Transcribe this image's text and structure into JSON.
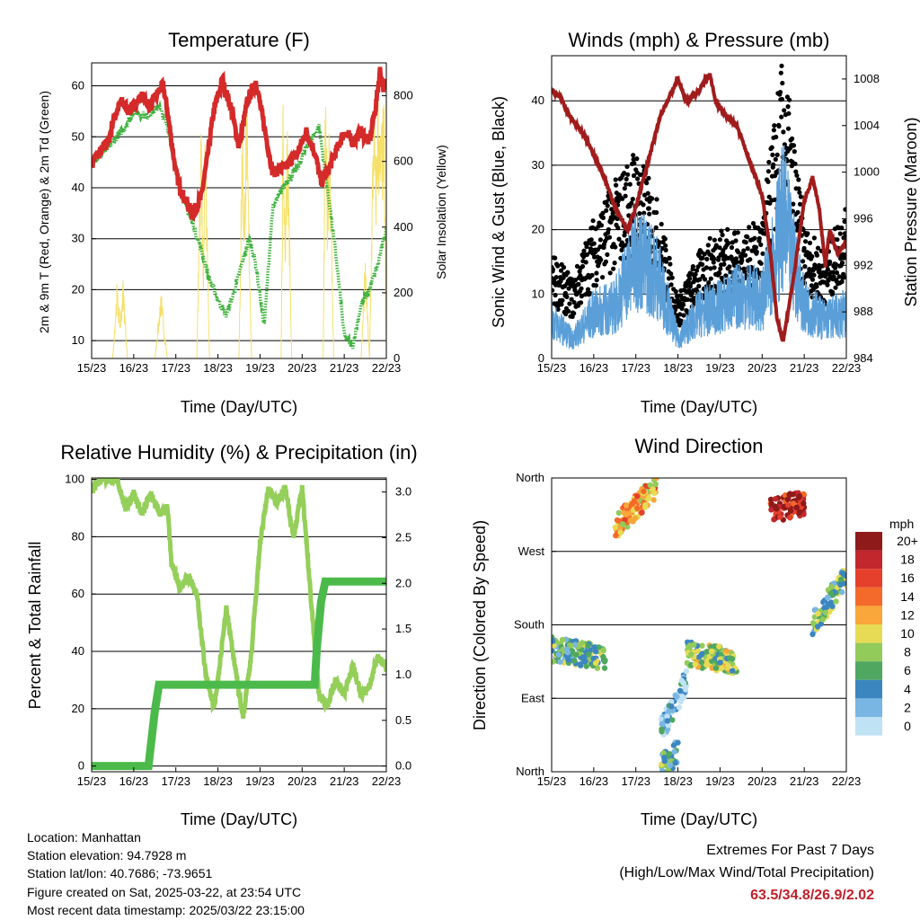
{
  "colors": {
    "temp": "#d42a2a",
    "dew": "#3fb23f",
    "solar": "#f5e06a",
    "wind": "#5b9fd9",
    "gust": "#000000",
    "pressure": "#a01c1c",
    "rh": "#94cf5a",
    "precip": "#4bba4b",
    "extremes": "#c0202a"
  },
  "x_ticks": [
    "15/23",
    "16/23",
    "17/23",
    "18/23",
    "19/23",
    "20/23",
    "21/23",
    "22/23"
  ],
  "info": {
    "location": "Location: Manhattan",
    "elevation": "Station elevation: 94.7928 m",
    "latlon": "Station lat/lon: 40.7686; -73.9651",
    "created": "Figure created on Sat, 2025-03-22, at 23:54 UTC",
    "recent": "Most recent data timestamp: 2025/03/22 23:15:00"
  },
  "extremes": {
    "title": "Extremes For Past 7 Days",
    "subtitle": "(High/Low/Max Wind/Total Precipitation)",
    "values": "63.5/34.8/26.9/2.02"
  },
  "chart_data": [
    {
      "type": "line",
      "title": "Temperature (F)",
      "xlabel": "Time (Day/UTC)",
      "ylabel": "2m & 9m T (Red, Orange) & 2m Td (Green)",
      "ylabel_right": "Solar Insolation (Yellow)",
      "x_range": [
        0,
        7
      ],
      "ylim": [
        6.5,
        64.5
      ],
      "yticks": [
        10,
        20,
        30,
        40,
        50,
        60
      ],
      "ylim_right": [
        0,
        900
      ],
      "yticks_right": [
        0,
        200,
        400,
        600,
        800
      ],
      "series": [
        {
          "color_key": "temp",
          "x": [
            0,
            0.2,
            0.4,
            0.5,
            0.7,
            0.9,
            1.2,
            1.4,
            1.6,
            1.7,
            1.8,
            2.0,
            2.1,
            2.25,
            2.4,
            2.6,
            2.75,
            2.9,
            3.1,
            3.3,
            3.5,
            3.7,
            3.9,
            4.1,
            4.3,
            4.6,
            4.9,
            5.1,
            5.3,
            5.45,
            5.6,
            5.8,
            6.0,
            6.2,
            6.4,
            6.6,
            6.75,
            6.85,
            6.95,
            7.0
          ],
          "y": [
            45,
            47,
            49,
            53,
            57,
            55,
            58,
            56,
            59,
            60,
            55,
            43,
            40,
            37,
            35,
            38,
            46,
            55,
            61,
            56,
            48,
            57,
            61,
            52,
            43,
            44,
            47,
            51,
            47,
            41,
            43,
            47,
            51,
            49,
            51,
            49,
            56,
            63,
            59,
            61
          ]
        },
        {
          "color_key": "dew",
          "x": [
            0,
            0.3,
            0.5,
            0.8,
            1.0,
            1.3,
            1.6,
            1.8,
            2.0,
            2.2,
            2.4,
            2.6,
            2.8,
            3.0,
            3.2,
            3.4,
            3.6,
            3.75,
            3.9,
            4.1,
            4.3,
            4.6,
            4.9,
            5.1,
            5.4,
            5.6,
            5.8,
            6.0,
            6.2,
            6.4,
            6.6,
            6.8,
            7.0
          ],
          "y": [
            45,
            47,
            49,
            52,
            55,
            54,
            56,
            52,
            44,
            37,
            33,
            28,
            22,
            18,
            15,
            20,
            26,
            30,
            25,
            13,
            36,
            41,
            44,
            48,
            52,
            40,
            27,
            11,
            9,
            17,
            20,
            25,
            32
          ]
        },
        {
          "color_key": "solar",
          "x": [
            0,
            0.5,
            0.6,
            0.68,
            0.75,
            0.85,
            1.5,
            1.6,
            1.66,
            1.72,
            1.8,
            2.2,
            2.5,
            2.6,
            2.65,
            2.7,
            2.8,
            3.1,
            3.5,
            3.58,
            3.62,
            3.68,
            3.8,
            4.1,
            4.5,
            4.55,
            4.6,
            4.65,
            4.75,
            5.1,
            5.5,
            5.55,
            5.6,
            5.65,
            5.75,
            6.1,
            6.4,
            6.5,
            6.6,
            6.7,
            6.75,
            6.8,
            6.85,
            6.95,
            7.0
          ],
          "y": [
            0,
            0,
            230,
            120,
            250,
            0,
            0,
            140,
            210,
            90,
            0,
            0,
            0,
            820,
            300,
            830,
            0,
            0,
            0,
            800,
            450,
            840,
            0,
            0,
            0,
            810,
            400,
            820,
            0,
            0,
            0,
            860,
            500,
            840,
            0,
            0,
            0,
            320,
            0,
            840,
            600,
            860,
            700,
            800,
            0
          ]
        }
      ]
    },
    {
      "type": "scatter",
      "title": "Winds (mph) & Pressure (mb)",
      "xlabel": "Time (Day/UTC)",
      "ylabel": "Sonic Wind & Gust (Blue, Black)",
      "ylabel_right": "Station Pressure (Maroon)",
      "x_range": [
        0,
        7
      ],
      "ylim": [
        0,
        47
      ],
      "yticks": [
        0,
        10,
        20,
        30,
        40
      ],
      "ylim_right": [
        984,
        1010
      ],
      "yticks_right": [
        984,
        988,
        992,
        996,
        1000,
        1004,
        1008
      ],
      "wind_x": [
        0,
        0.5,
        1.0,
        1.5,
        2.0,
        2.5,
        3.0,
        3.5,
        4.0,
        4.5,
        5.0,
        5.5,
        6.0,
        6.5,
        7.0
      ],
      "wind_y": [
        6,
        3,
        7,
        8,
        16,
        13,
        3,
        7,
        8,
        10,
        9,
        22,
        8,
        6,
        7
      ],
      "gust_x": [
        0,
        0.5,
        1.0,
        1.5,
        2.0,
        2.5,
        3.0,
        3.5,
        4.0,
        4.5,
        5.0,
        5.5,
        6.0,
        6.5,
        7.0
      ],
      "gust_y": [
        12,
        9,
        16,
        20,
        24,
        18,
        7,
        12,
        15,
        14,
        16,
        35,
        15,
        12,
        18
      ],
      "pressure_x": [
        0,
        0.2,
        0.4,
        0.8,
        1.2,
        1.5,
        1.8,
        2.0,
        2.3,
        2.6,
        3.0,
        3.2,
        3.5,
        3.75,
        3.9,
        4.1,
        4.4,
        4.7,
        5.0,
        5.2,
        5.35,
        5.5,
        5.75,
        6.0,
        6.2,
        6.35,
        6.5,
        6.6,
        6.8,
        7.0
      ],
      "pressure_y": [
        1007,
        1006.5,
        1005,
        1003,
        1000,
        997,
        995,
        997,
        1001,
        1005,
        1008,
        1006,
        1007,
        1008.5,
        1006,
        1005,
        1004,
        1001,
        998,
        993,
        987.5,
        985.5,
        991,
        997.5,
        999.5,
        997,
        992,
        995,
        993,
        994
      ]
    },
    {
      "type": "line",
      "title": "Relative Humidity (%) & Precipitation (in)",
      "xlabel": "Time (Day/UTC)",
      "ylabel": "Percent & Total Rainfall",
      "x_range": [
        0,
        7
      ],
      "ylim": [
        -2,
        100.5
      ],
      "yticks": [
        0,
        20,
        40,
        60,
        80,
        100
      ],
      "ylim_right": [
        0,
        3.08
      ],
      "yticks_right": [
        "0.0",
        "0.5",
        "1.0",
        "1.5",
        "2.0",
        "2.5",
        "3.0"
      ],
      "rh_x": [
        0,
        0.2,
        0.4,
        0.6,
        0.8,
        1.0,
        1.2,
        1.4,
        1.6,
        1.8,
        1.9,
        2.1,
        2.3,
        2.5,
        2.7,
        2.9,
        3.0,
        3.2,
        3.4,
        3.6,
        3.8,
        4.0,
        4.2,
        4.4,
        4.6,
        4.8,
        5.0,
        5.2,
        5.4,
        5.6,
        5.8,
        6.0,
        6.2,
        6.4,
        6.6,
        6.8,
        7.0
      ],
      "rh_y": [
        96,
        100,
        100,
        100,
        90,
        95,
        88,
        95,
        88,
        90,
        70,
        62,
        66,
        60,
        33,
        20,
        30,
        55,
        35,
        17,
        40,
        78,
        97,
        92,
        97,
        80,
        97,
        60,
        25,
        21,
        30,
        25,
        35,
        25,
        28,
        38,
        35
      ],
      "precip_x": [
        0,
        1.35,
        1.4,
        1.5,
        1.6,
        5.3,
        5.35,
        5.45,
        5.55,
        7.0
      ],
      "precip_y": [
        0,
        0,
        0.2,
        0.6,
        0.89,
        0.89,
        1.3,
        1.8,
        2.02,
        2.02
      ]
    },
    {
      "type": "scatter",
      "title": "Wind Direction",
      "xlabel": "Time (Day/UTC)",
      "ylabel": "Direction (Colored By Speed)",
      "yticks": [
        "North",
        "East",
        "South",
        "West",
        "North"
      ],
      "ylim": [
        0,
        360
      ],
      "legend_title": "mph",
      "legend_labels": [
        "20+",
        "18",
        "16",
        "14",
        "12",
        "10",
        "8",
        "6",
        "4",
        "2",
        "0"
      ],
      "legend_colors": [
        "#8e1a1a",
        "#c1272d",
        "#e4402c",
        "#f46a2a",
        "#f9a63a",
        "#e7db55",
        "#93cb5a",
        "#4fa760",
        "#3c86c0",
        "#7ab6e3",
        "#bfe2f5"
      ],
      "clusters": [
        {
          "x": [
            0,
            1.3
          ],
          "dir": [
            150,
            140
          ],
          "speed": 6
        },
        {
          "x": [
            1.5,
            2.5
          ],
          "dir": [
            300,
            350
          ],
          "speed": 12
        },
        {
          "x": [
            2.6,
            3.0
          ],
          "dir": [
            5,
            25
          ],
          "speed": 6
        },
        {
          "x": [
            2.6,
            3.2
          ],
          "dir": [
            50,
            110
          ],
          "speed": 2
        },
        {
          "x": [
            3.2,
            4.4
          ],
          "dir": [
            145,
            135
          ],
          "speed": 8
        },
        {
          "x": [
            5.2,
            6.0
          ],
          "dir": [
            320,
            330
          ],
          "speed": 18
        },
        {
          "x": [
            6.2,
            7.0
          ],
          "dir": [
            180,
            240
          ],
          "speed": 6
        }
      ]
    }
  ]
}
